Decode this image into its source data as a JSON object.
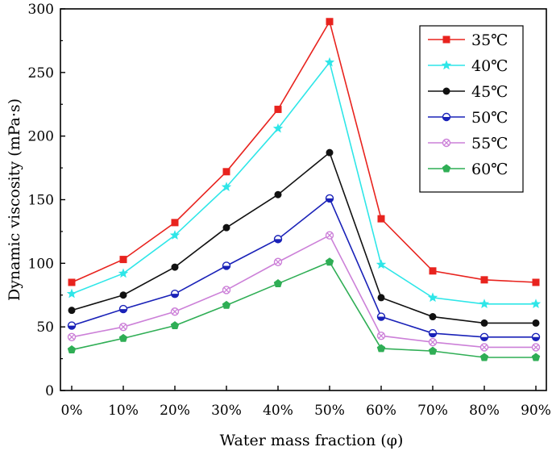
{
  "chart_data": {
    "type": "line",
    "xlabel": "Water mass fraction (φ)",
    "ylabel": "Dynamic viscosity (mPa·s)",
    "categories": [
      "0%",
      "10%",
      "20%",
      "30%",
      "40%",
      "50%",
      "60%",
      "70%",
      "80%",
      "90%"
    ],
    "yticks": [
      0,
      50,
      100,
      150,
      200,
      250,
      300
    ],
    "ylim": [
      0,
      300
    ],
    "legend_position": "top-right",
    "series": [
      {
        "name": "35℃",
        "color": "#e8231e",
        "marker": "square",
        "values": [
          85,
          103,
          132,
          172,
          221,
          290,
          135,
          94,
          87,
          85
        ]
      },
      {
        "name": "40℃",
        "color": "#2ee6e8",
        "marker": "star",
        "values": [
          76,
          92,
          122,
          160,
          206,
          258,
          99,
          73,
          68,
          68
        ]
      },
      {
        "name": "45℃",
        "color": "#111111",
        "marker": "circle",
        "values": [
          63,
          75,
          97,
          128,
          154,
          187,
          73,
          58,
          53,
          53
        ]
      },
      {
        "name": "50℃",
        "color": "#1a22b8",
        "marker": "half-circle",
        "values": [
          51,
          64,
          76,
          98,
          119,
          151,
          58,
          45,
          42,
          42
        ]
      },
      {
        "name": "55℃",
        "color": "#cc80d8",
        "marker": "circle-x",
        "values": [
          42,
          50,
          62,
          79,
          101,
          122,
          43,
          38,
          34,
          34
        ]
      },
      {
        "name": "60℃",
        "color": "#2fae55",
        "marker": "pentagon",
        "values": [
          32,
          41,
          51,
          67,
          84,
          101,
          33,
          31,
          26,
          26
        ]
      }
    ]
  }
}
